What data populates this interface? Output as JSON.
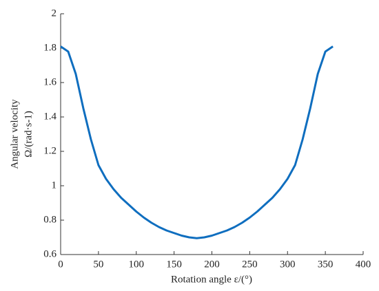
{
  "chart_data": {
    "type": "line",
    "xlabel": "Rotation angle ε/(°)",
    "ylabel": [
      "Angular velocity",
      "Ω/(rad·s-1)"
    ],
    "x": [
      0,
      10,
      20,
      30,
      40,
      50,
      60,
      70,
      80,
      90,
      100,
      110,
      120,
      130,
      140,
      150,
      160,
      170,
      180,
      190,
      200,
      210,
      220,
      230,
      240,
      250,
      260,
      270,
      280,
      290,
      300,
      310,
      320,
      330,
      340,
      350,
      360
    ],
    "series": [
      {
        "name": "Angular velocity",
        "color": "#0f6ebf",
        "values": [
          1.81,
          1.78,
          1.65,
          1.45,
          1.27,
          1.12,
          1.04,
          0.98,
          0.93,
          0.89,
          0.85,
          0.815,
          0.785,
          0.76,
          0.74,
          0.725,
          0.71,
          0.7,
          0.695,
          0.7,
          0.71,
          0.725,
          0.74,
          0.76,
          0.785,
          0.815,
          0.85,
          0.89,
          0.93,
          0.98,
          1.04,
          1.12,
          1.27,
          1.45,
          1.65,
          1.78,
          1.81
        ]
      }
    ],
    "xlim": [
      0,
      400
    ],
    "xticks": [
      0,
      50,
      100,
      150,
      200,
      250,
      300,
      350,
      400
    ],
    "ylim": [
      0.6,
      2
    ],
    "yticks": [
      0.6,
      0.8,
      1,
      1.2,
      1.4,
      1.6,
      1.8,
      2
    ]
  }
}
